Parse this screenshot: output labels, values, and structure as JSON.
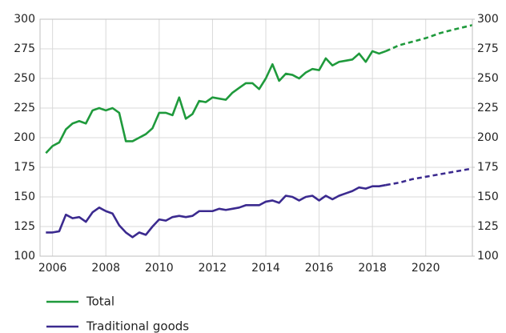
{
  "chart_data": {
    "type": "line",
    "x": [
      2005.75,
      2006,
      2006.25,
      2006.5,
      2006.75,
      2007,
      2007.25,
      2007.5,
      2007.75,
      2008,
      2008.25,
      2008.5,
      2008.75,
      2009,
      2009.25,
      2009.5,
      2009.75,
      2010,
      2010.25,
      2010.5,
      2010.75,
      2011,
      2011.25,
      2011.5,
      2011.75,
      2012,
      2012.25,
      2012.5,
      2012.75,
      2013,
      2013.25,
      2013.5,
      2013.75,
      2014,
      2014.25,
      2014.5,
      2014.75,
      2015,
      2015.25,
      2015.5,
      2015.75,
      2016,
      2016.25,
      2016.5,
      2016.75,
      2017,
      2017.25,
      2017.5,
      2017.75,
      2018,
      2018.25,
      2018.5,
      2019,
      2019.5,
      2020,
      2020.5,
      2021,
      2021.75
    ],
    "forecast_start": 2018.5,
    "series": [
      {
        "name": "Total",
        "color": "#1f9a3c",
        "values": [
          187,
          193,
          196,
          207,
          212,
          214,
          212,
          223,
          225,
          223,
          225,
          221,
          197,
          197,
          200,
          203,
          208,
          221,
          221,
          219,
          234,
          216,
          220,
          231,
          230,
          234,
          233,
          232,
          238,
          242,
          246,
          246,
          241,
          250,
          262,
          248,
          254,
          253,
          250,
          255,
          258,
          257,
          267,
          261,
          264,
          265,
          266,
          271,
          264,
          273,
          271,
          273,
          278,
          281,
          284,
          288,
          291,
          295
        ]
      },
      {
        "name": "Traditional goods",
        "color": "#3b2a8f",
        "values": [
          120,
          120,
          121,
          135,
          132,
          133,
          129,
          137,
          141,
          138,
          136,
          126,
          120,
          116,
          120,
          118,
          125,
          131,
          130,
          133,
          134,
          133,
          134,
          138,
          138,
          138,
          140,
          139,
          140,
          141,
          143,
          143,
          143,
          146,
          147,
          145,
          151,
          150,
          147,
          150,
          151,
          147,
          151,
          148,
          151,
          153,
          155,
          158,
          157,
          159,
          159,
          160,
          162,
          165,
          167,
          169,
          171,
          174
        ]
      }
    ],
    "xlim": [
      2005.53,
      2021.75
    ],
    "xticks": [
      2006,
      2008,
      2010,
      2012,
      2014,
      2016,
      2018,
      2020
    ],
    "ylim": [
      100,
      300
    ],
    "yticks": [
      100,
      125,
      150,
      175,
      200,
      225,
      250,
      275,
      300
    ],
    "y2lim": [
      100,
      300
    ],
    "y2ticks": [
      100,
      125,
      150,
      175,
      200,
      225,
      250,
      275,
      300
    ],
    "grid": true
  }
}
